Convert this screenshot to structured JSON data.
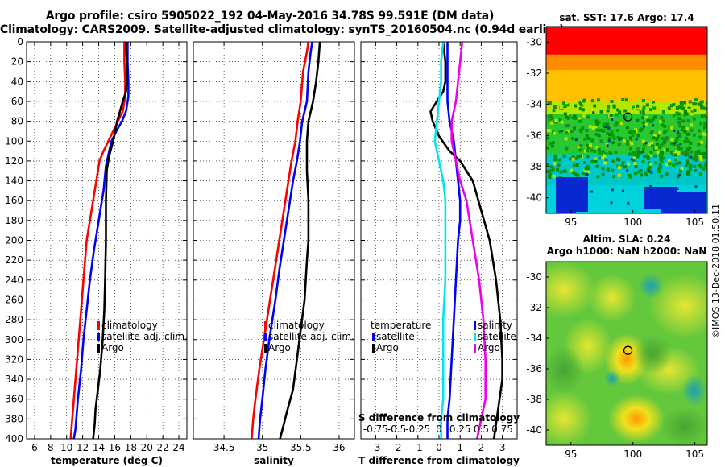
{
  "header": {
    "line1": "Argo profile: csiro 5905022_192 04-May-2016 34.78S 99.591E (DM data)",
    "line2": "Climatology: CARS2009. Satellite-adjusted climatology: synTS_20160504.nc (0.94d earlier)"
  },
  "side": {
    "sst_title": "sat. SST: 17.6 Argo: 17.4",
    "sla_title1": "Altim. SLA: 0.24",
    "sla_title2": "Argo h1000: NaN h2000: NaN",
    "watermark": "©IMOS 13-Dec-2018 01:50:11"
  },
  "colors": {
    "clim": "#ff0000",
    "sat": "#0000ff",
    "argo": "#000000",
    "cyan": "#00e5ee",
    "magenta": "#ee00ee"
  },
  "chart_data": [
    {
      "id": "temperature",
      "type": "line",
      "xlabel": "temperature (deg C)",
      "ylabel": "",
      "xlim": [
        5,
        25
      ],
      "ylim": [
        400,
        0
      ],
      "xticks": [
        6,
        8,
        10,
        12,
        14,
        16,
        18,
        20,
        22,
        24
      ],
      "yticks": [
        0,
        20,
        40,
        60,
        80,
        100,
        120,
        140,
        160,
        180,
        200,
        220,
        240,
        260,
        280,
        300,
        320,
        340,
        360,
        380,
        400
      ],
      "grid": true,
      "legend": [
        "climatology",
        "satellite-adj. clim.",
        "Argo"
      ],
      "series": [
        {
          "name": "climatology",
          "color": "clim",
          "x": [
            17.2,
            17.2,
            17.3,
            17.3,
            17.0,
            16.4,
            15.8,
            15.2,
            14.6,
            14.1,
            13.7,
            13.3,
            12.9,
            12.5,
            12.1,
            11.7,
            11.3,
            11.0,
            10.7,
            10.5
          ],
          "y": [
            0,
            20,
            40,
            55,
            70,
            80,
            90,
            100,
            110,
            120,
            140,
            160,
            180,
            200,
            240,
            280,
            320,
            350,
            380,
            400
          ]
        },
        {
          "name": "satellite-adj. clim.",
          "color": "sat",
          "x": [
            17.6,
            17.6,
            17.7,
            17.7,
            17.4,
            16.9,
            16.2,
            15.6,
            15.3,
            14.9,
            14.6,
            14.2,
            13.8,
            13.4,
            12.9,
            12.5,
            12.1,
            11.8,
            11.4,
            11.1,
            10.9
          ],
          "y": [
            0,
            20,
            40,
            55,
            70,
            80,
            90,
            100,
            110,
            125,
            150,
            170,
            190,
            210,
            240,
            270,
            300,
            330,
            360,
            390,
            400
          ]
        },
        {
          "name": "Argo",
          "color": "argo",
          "x": [
            17.4,
            17.5,
            17.5,
            17.4,
            17.0,
            16.3,
            15.8,
            15.3,
            15.0,
            14.9,
            14.9,
            14.8,
            14.7,
            14.5,
            14.2,
            13.9,
            13.6,
            13.5,
            13.3
          ],
          "y": [
            0,
            20,
            40,
            50,
            60,
            80,
            100,
            115,
            130,
            160,
            200,
            240,
            270,
            300,
            330,
            350,
            370,
            385,
            400
          ]
        }
      ]
    },
    {
      "id": "salinity",
      "type": "line",
      "xlabel": "salinity",
      "xlim": [
        34.1,
        36.2
      ],
      "ylim": [
        400,
        0
      ],
      "xticks": [
        34.5,
        35,
        35.5,
        36
      ],
      "grid": true,
      "legend": [
        "climatology",
        "satellite-adj. clim.",
        "Argo"
      ],
      "series": [
        {
          "name": "climatology",
          "color": "clim",
          "x": [
            35.6,
            35.58,
            35.53,
            35.5,
            35.46,
            35.43,
            35.38,
            35.34,
            35.28,
            35.22,
            35.16,
            35.1,
            35.02,
            34.96,
            34.91,
            34.88,
            34.86
          ],
          "y": [
            0,
            10,
            30,
            60,
            80,
            100,
            120,
            140,
            170,
            200,
            230,
            260,
            300,
            330,
            360,
            380,
            400
          ]
        },
        {
          "name": "satellite-adj. clim.",
          "color": "sat",
          "x": [
            35.65,
            35.63,
            35.6,
            35.58,
            35.52,
            35.49,
            35.45,
            35.4,
            35.34,
            35.28,
            35.22,
            35.17,
            35.09,
            35.04,
            35.0,
            34.97,
            34.95
          ],
          "y": [
            0,
            10,
            30,
            60,
            80,
            100,
            120,
            140,
            170,
            200,
            230,
            260,
            300,
            330,
            360,
            380,
            400
          ]
        },
        {
          "name": "Argo",
          "color": "argo",
          "x": [
            35.75,
            35.73,
            35.7,
            35.66,
            35.6,
            35.58,
            35.58,
            35.6,
            35.6,
            35.58,
            35.55,
            35.5,
            35.45,
            35.4,
            35.33,
            35.28,
            35.23
          ],
          "y": [
            0,
            20,
            40,
            60,
            80,
            100,
            130,
            160,
            200,
            220,
            260,
            290,
            320,
            350,
            370,
            385,
            400
          ]
        }
      ]
    },
    {
      "id": "difference",
      "type": "line",
      "xlabel": "T difference from climatology",
      "top_label": "S difference from climatology",
      "xlim": [
        -3.7,
        3.7
      ],
      "ylim": [
        400,
        0
      ],
      "xticks": [
        -3,
        -2,
        -1,
        0,
        1,
        2,
        3
      ],
      "top_ticks": [
        "-0.75",
        "-0.5",
        "-0.25",
        "0",
        "0.25",
        "0.5",
        "0.75"
      ],
      "grid": true,
      "legend_left": [
        "temperature",
        "satellite",
        "Argo"
      ],
      "legend_right": [
        "salinity",
        "satellite",
        "Argo"
      ],
      "series": [
        {
          "name": "T satellite",
          "color": "sat",
          "x": [
            0.4,
            0.4,
            0.4,
            0.4,
            0.5,
            0.7,
            0.8,
            0.9,
            1.0,
            1.0,
            0.9,
            0.8,
            0.7,
            0.6,
            0.5,
            0.4,
            0.4
          ],
          "y": [
            0,
            20,
            40,
            60,
            80,
            100,
            120,
            140,
            160,
            180,
            200,
            240,
            280,
            320,
            360,
            380,
            400
          ]
        },
        {
          "name": "T Argo",
          "color": "argo",
          "x": [
            0.2,
            0.3,
            0.3,
            0.2,
            -0.4,
            -0.3,
            0.0,
            0.5,
            1.0,
            1.6,
            2.0,
            2.4,
            2.7,
            2.9,
            3.0,
            3.0,
            2.8,
            2.6
          ],
          "y": [
            0,
            20,
            40,
            50,
            70,
            80,
            95,
            110,
            120,
            140,
            170,
            200,
            240,
            280,
            320,
            340,
            370,
            400
          ]
        },
        {
          "name": "S satellite",
          "color": "cyan",
          "x": [
            0.2,
            0.1,
            0.1,
            0.0,
            -0.1,
            -0.2,
            0.0,
            0.2,
            0.3,
            0.3,
            0.3,
            0.2,
            0.2,
            0.2,
            0.1,
            0.1
          ],
          "y": [
            0,
            20,
            40,
            60,
            80,
            100,
            120,
            140,
            160,
            200,
            240,
            280,
            320,
            360,
            380,
            400
          ]
        },
        {
          "name": "S Argo",
          "color": "magenta",
          "x": [
            1.1,
            1.0,
            0.9,
            0.8,
            0.6,
            0.6,
            0.8,
            1.0,
            1.3,
            1.6,
            1.9,
            2.1,
            2.2,
            2.2,
            2.0,
            1.8
          ],
          "y": [
            0,
            20,
            40,
            60,
            80,
            100,
            120,
            140,
            160,
            200,
            240,
            280,
            320,
            360,
            380,
            400
          ]
        }
      ]
    },
    {
      "id": "sst_map",
      "type": "heatmap",
      "title": "sat. SST: 17.6 Argo: 17.4",
      "xlim": [
        93,
        106
      ],
      "ylim": [
        -41,
        -29
      ],
      "xticks": [
        95,
        100,
        105
      ],
      "yticks": [
        -30,
        -32,
        -34,
        -36,
        -38,
        -40
      ],
      "marker": {
        "lon": 99.6,
        "lat": -34.8
      },
      "zones": [
        {
          "lat_top": -29,
          "lat_bot": -30.8,
          "color": "#ff0000"
        },
        {
          "lat_top": -30.8,
          "lat_bot": -31.8,
          "color": "#ff8c00"
        },
        {
          "lat_top": -31.8,
          "lat_bot": -33.8,
          "color": "#ffc000"
        },
        {
          "lat_top": -33.8,
          "lat_bot": -34.6,
          "color": "#b4e600"
        },
        {
          "lat_top": -34.6,
          "lat_bot": -37.2,
          "color": "#28c832"
        },
        {
          "lat_top": -37.2,
          "lat_bot": -39.2,
          "color": "#00c8c8"
        },
        {
          "lat_top": -39.2,
          "lat_bot": -41,
          "color": "#00d2dc"
        }
      ]
    },
    {
      "id": "sla_map",
      "type": "heatmap",
      "title": "Altim. SLA: 0.24",
      "xlim": [
        93,
        106
      ],
      "ylim": [
        -41,
        -29
      ],
      "xticks": [
        95,
        100,
        105
      ],
      "yticks": [
        -30,
        -32,
        -34,
        -36,
        -38,
        -40
      ],
      "marker": {
        "lon": 99.6,
        "lat": -34.8
      }
    }
  ]
}
